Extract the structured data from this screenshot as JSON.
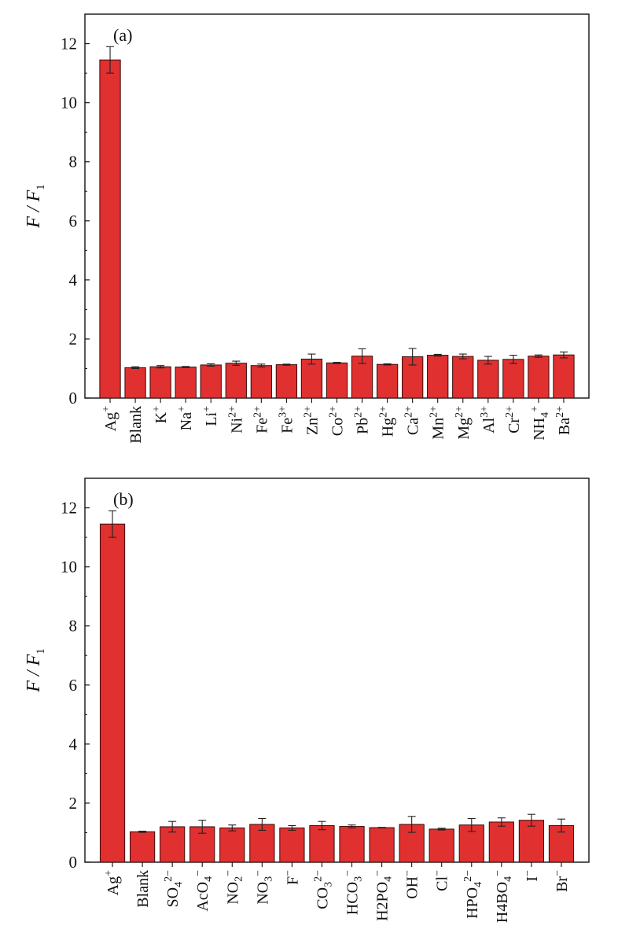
{
  "chart_data": [
    {
      "type": "bar",
      "panel_label": "(a)",
      "ylabel": "F / F1",
      "ylabel_main": "F / F",
      "ylabel_sub": "1",
      "ylim": [
        0,
        13
      ],
      "yticks": [
        0,
        2,
        4,
        6,
        8,
        10,
        12
      ],
      "bar_color": "#e03030",
      "categories": [
        {
          "base": "Ag",
          "sup": "+",
          "sub": ""
        },
        {
          "base": "Blank",
          "sup": "",
          "sub": ""
        },
        {
          "base": "K",
          "sup": "+",
          "sub": ""
        },
        {
          "base": "Na",
          "sup": "+",
          "sub": ""
        },
        {
          "base": "Li",
          "sup": "+",
          "sub": ""
        },
        {
          "base": "Ni",
          "sup": "2+",
          "sub": ""
        },
        {
          "base": "Fe",
          "sup": "2+",
          "sub": ""
        },
        {
          "base": "Fe",
          "sup": "3+",
          "sub": ""
        },
        {
          "base": "Zn",
          "sup": "2+",
          "sub": ""
        },
        {
          "base": "Co",
          "sup": "2+",
          "sub": ""
        },
        {
          "base": "Pb",
          "sup": "2+",
          "sub": ""
        },
        {
          "base": "Hg",
          "sup": "2+",
          "sub": ""
        },
        {
          "base": "Ca",
          "sup": "2+",
          "sub": ""
        },
        {
          "base": "Mn",
          "sup": "2+",
          "sub": ""
        },
        {
          "base": "Mg",
          "sup": "2+",
          "sub": ""
        },
        {
          "base": "Al",
          "sup": "3+",
          "sub": ""
        },
        {
          "base": "Cr",
          "sup": "2+",
          "sub": ""
        },
        {
          "base": "NH",
          "sup": "+",
          "sub": "4"
        },
        {
          "base": "Ba",
          "sup": "2+",
          "sub": ""
        }
      ],
      "values": [
        11.45,
        1.03,
        1.06,
        1.05,
        1.12,
        1.18,
        1.1,
        1.13,
        1.32,
        1.19,
        1.42,
        1.14,
        1.4,
        1.45,
        1.41,
        1.28,
        1.31,
        1.42,
        1.46
      ],
      "errors": [
        0.45,
        0.03,
        0.04,
        0.02,
        0.04,
        0.07,
        0.05,
        0.02,
        0.17,
        0.02,
        0.25,
        0.02,
        0.28,
        0.03,
        0.08,
        0.13,
        0.14,
        0.04,
        0.1
      ]
    },
    {
      "type": "bar",
      "panel_label": "(b)",
      "ylabel": "F / F1",
      "ylabel_main": "F / F",
      "ylabel_sub": "1",
      "ylim": [
        0,
        13
      ],
      "yticks": [
        0,
        2,
        4,
        6,
        8,
        10,
        12
      ],
      "bar_color": "#e03030",
      "categories": [
        {
          "base": "Ag",
          "sup": "+",
          "sub": ""
        },
        {
          "base": "Blank",
          "sup": "",
          "sub": ""
        },
        {
          "base": "SO",
          "sup": "2−",
          "sub": "4"
        },
        {
          "base": "AcO",
          "sup": "−",
          "sub": "4"
        },
        {
          "base": "NO",
          "sup": "−",
          "sub": "2"
        },
        {
          "base": "NO",
          "sup": "−",
          "sub": "3"
        },
        {
          "base": "F",
          "sup": "−",
          "sub": ""
        },
        {
          "base": "CO",
          "sup": "2−",
          "sub": "3"
        },
        {
          "base": "HCO",
          "sup": "−",
          "sub": "3"
        },
        {
          "base": "H2PO",
          "sup": "−",
          "sub": "4"
        },
        {
          "base": "OH",
          "sup": "−",
          "sub": ""
        },
        {
          "base": "Cl",
          "sup": "−",
          "sub": ""
        },
        {
          "base": "HPO",
          "sup": "2−",
          "sub": "4"
        },
        {
          "base": "H4BO",
          "sup": "−",
          "sub": "4"
        },
        {
          "base": "I",
          "sup": "−",
          "sub": ""
        },
        {
          "base": "Br",
          "sup": "−",
          "sub": ""
        }
      ],
      "values": [
        11.45,
        1.03,
        1.2,
        1.2,
        1.16,
        1.28,
        1.16,
        1.24,
        1.21,
        1.17,
        1.28,
        1.12,
        1.26,
        1.36,
        1.42,
        1.24
      ],
      "errors": [
        0.45,
        0.02,
        0.18,
        0.22,
        0.1,
        0.2,
        0.08,
        0.14,
        0.05,
        0.01,
        0.27,
        0.03,
        0.22,
        0.14,
        0.2,
        0.22
      ]
    }
  ]
}
